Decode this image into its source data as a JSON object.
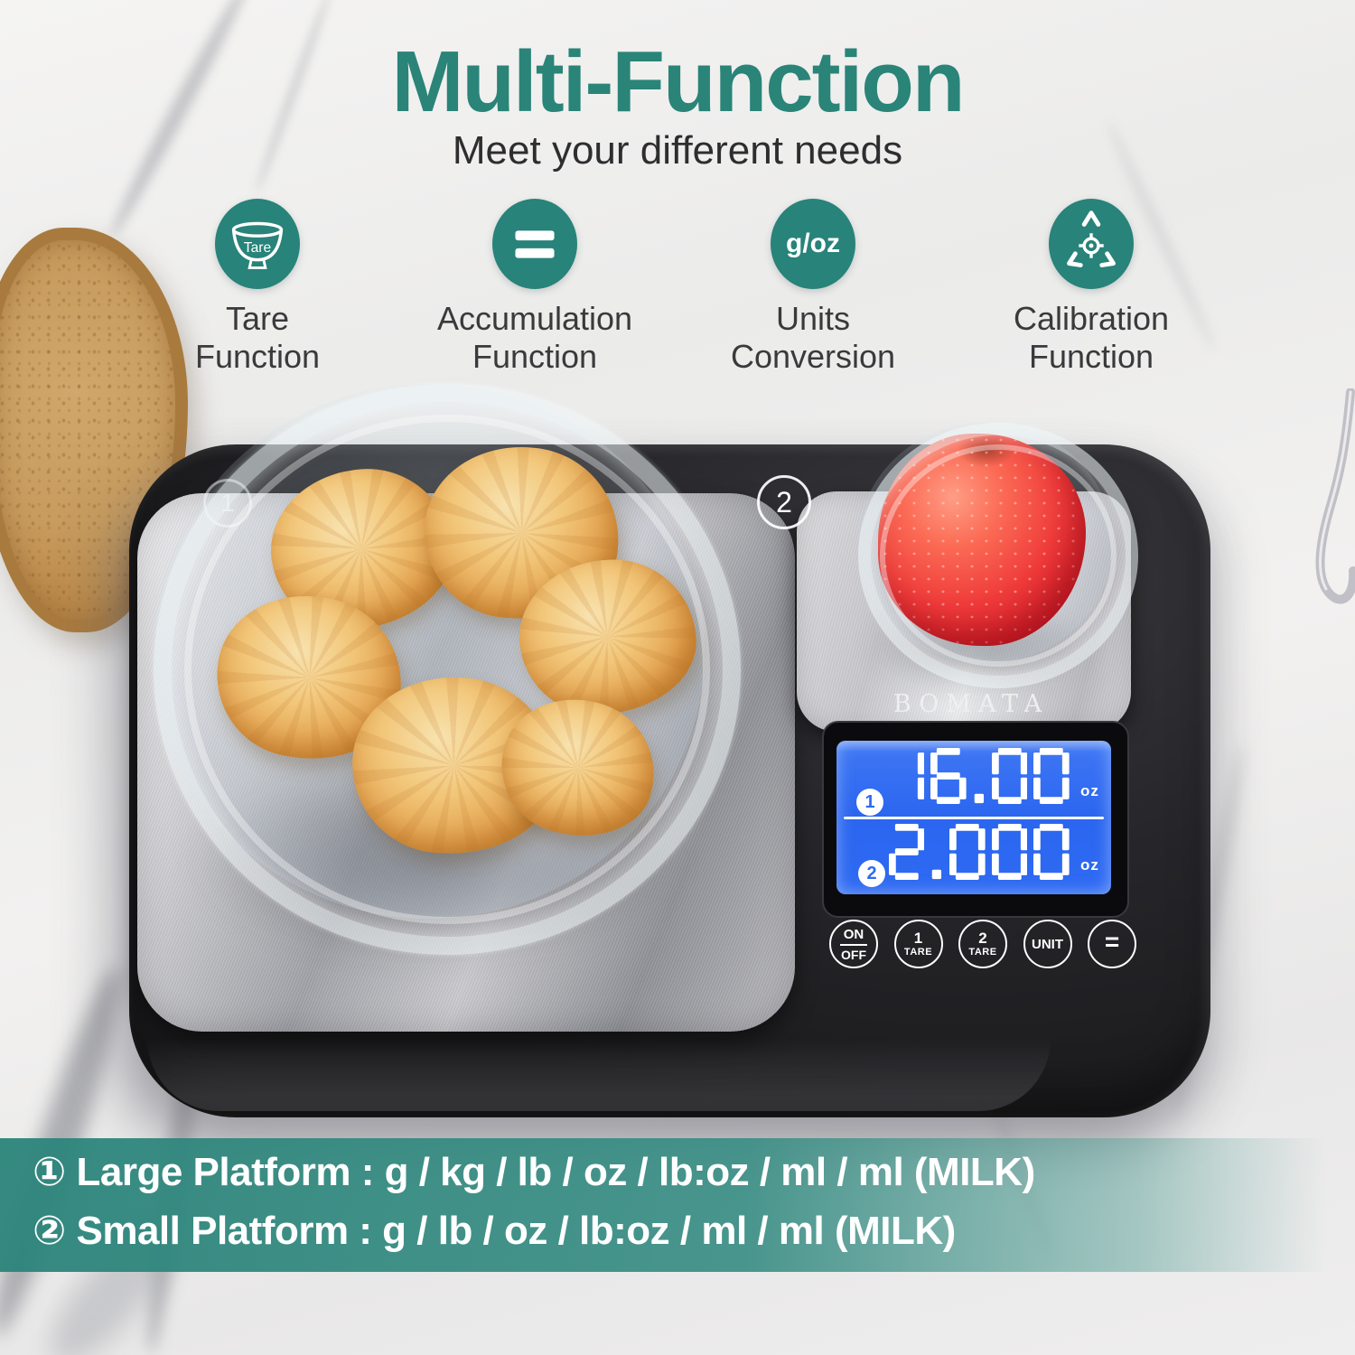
{
  "header": {
    "title": "Multi-Function",
    "subtitle": "Meet your different needs"
  },
  "features": [
    {
      "icon": "tare-bowl-icon",
      "icon_text": "Tare",
      "line1": "Tare",
      "line2": "Function"
    },
    {
      "icon": "equals-icon",
      "line1": "Accumulation",
      "line2": "Function"
    },
    {
      "icon": "g-oz-icon",
      "icon_text": "g/oz",
      "line1": "Units",
      "line2": "Conversion"
    },
    {
      "icon": "calibration-icon",
      "line1": "Calibration",
      "line2": "Function"
    }
  ],
  "scale": {
    "brand": "BOMATA",
    "platform_marks": {
      "large": "1",
      "small": "2"
    },
    "display": {
      "rows": [
        {
          "indicator": "1",
          "value": "16.00",
          "unit": "oz"
        },
        {
          "indicator": "2",
          "value": "2.000",
          "unit": "oz"
        }
      ]
    },
    "buttons": [
      {
        "top": "ON",
        "bottom": "OFF"
      },
      {
        "top": "1",
        "bottom": "TARE"
      },
      {
        "top": "2",
        "bottom": "TARE"
      },
      {
        "label": "UNIT"
      },
      {
        "label": "="
      }
    ]
  },
  "footer": {
    "lines": [
      "① Large Platform : g / kg / lb / oz / lb:oz / ml / ml (MILK)",
      "② Small Platform : g / lb / oz / lb:oz / ml / ml (MILK)"
    ]
  },
  "colors": {
    "accent_teal": "#2A8478",
    "band_teal": "#3A8E85",
    "lcd_blue": "#2E6AF2",
    "scale_black": "#1B1B1D"
  }
}
